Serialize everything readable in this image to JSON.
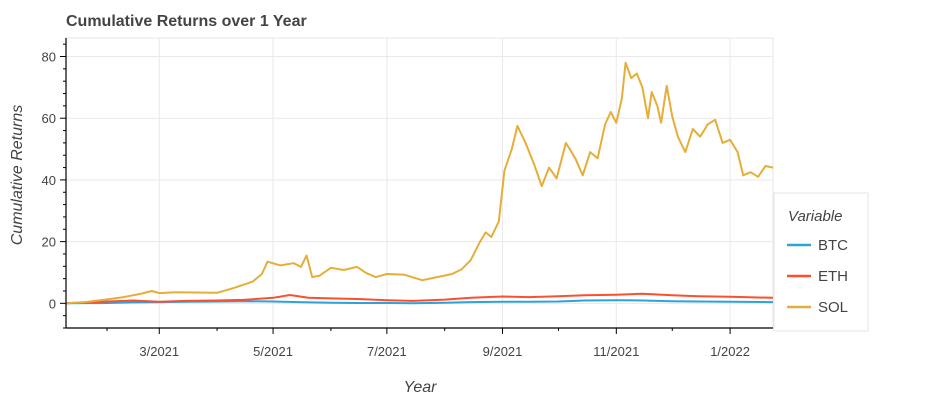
{
  "chart_data": {
    "type": "line",
    "title": "Cumulative Returns over 1 Year",
    "xlabel": "Year",
    "ylabel": "Cumulative Returns",
    "x_range": [
      "2021-01-10",
      "2022-01-24"
    ],
    "ylim": [
      -8,
      86
    ],
    "x_ticks": [
      {
        "date": "2021-03-01",
        "label": "3/2021"
      },
      {
        "date": "2021-05-01",
        "label": "5/2021"
      },
      {
        "date": "2021-07-01",
        "label": "7/2021"
      },
      {
        "date": "2021-09-01",
        "label": "9/2021"
      },
      {
        "date": "2021-11-01",
        "label": "11/2021"
      },
      {
        "date": "2022-01-01",
        "label": "1/2022"
      }
    ],
    "y_ticks": [
      0,
      20,
      40,
      60,
      80
    ],
    "grid": true,
    "legend": {
      "title": "Variable",
      "placement": "right"
    },
    "series": [
      {
        "name": "BTC",
        "color": "#30a2da",
        "points": [
          [
            "2021-01-10",
            0.0
          ],
          [
            "2021-02-01",
            0.1
          ],
          [
            "2021-02-15",
            0.3
          ],
          [
            "2021-03-01",
            0.4
          ],
          [
            "2021-03-15",
            0.5
          ],
          [
            "2021-04-01",
            0.6
          ],
          [
            "2021-04-15",
            0.7
          ],
          [
            "2021-05-01",
            0.6
          ],
          [
            "2021-05-15",
            0.4
          ],
          [
            "2021-06-01",
            0.2
          ],
          [
            "2021-06-15",
            0.1
          ],
          [
            "2021-07-01",
            0.1
          ],
          [
            "2021-07-15",
            0.0
          ],
          [
            "2021-08-01",
            0.2
          ],
          [
            "2021-08-15",
            0.4
          ],
          [
            "2021-09-01",
            0.5
          ],
          [
            "2021-09-15",
            0.5
          ],
          [
            "2021-10-01",
            0.6
          ],
          [
            "2021-10-15",
            0.9
          ],
          [
            "2021-11-01",
            1.0
          ],
          [
            "2021-11-15",
            0.9
          ],
          [
            "2021-12-01",
            0.7
          ],
          [
            "2021-12-15",
            0.6
          ],
          [
            "2022-01-01",
            0.5
          ],
          [
            "2022-01-24",
            0.4
          ]
        ]
      },
      {
        "name": "ETH",
        "color": "#fc4f30",
        "points": [
          [
            "2021-01-10",
            0.0
          ],
          [
            "2021-02-01",
            0.6
          ],
          [
            "2021-02-15",
            0.9
          ],
          [
            "2021-03-01",
            0.5
          ],
          [
            "2021-03-15",
            0.8
          ],
          [
            "2021-04-01",
            0.9
          ],
          [
            "2021-04-15",
            1.1
          ],
          [
            "2021-05-01",
            1.8
          ],
          [
            "2021-05-10",
            2.7
          ],
          [
            "2021-05-20",
            1.8
          ],
          [
            "2021-06-01",
            1.6
          ],
          [
            "2021-06-15",
            1.4
          ],
          [
            "2021-07-01",
            1.0
          ],
          [
            "2021-07-15",
            0.8
          ],
          [
            "2021-08-01",
            1.2
          ],
          [
            "2021-08-15",
            1.8
          ],
          [
            "2021-09-01",
            2.2
          ],
          [
            "2021-09-15",
            2.0
          ],
          [
            "2021-10-01",
            2.3
          ],
          [
            "2021-10-15",
            2.6
          ],
          [
            "2021-11-01",
            2.8
          ],
          [
            "2021-11-15",
            3.1
          ],
          [
            "2021-12-01",
            2.6
          ],
          [
            "2021-12-15",
            2.3
          ],
          [
            "2022-01-01",
            2.1
          ],
          [
            "2022-01-24",
            1.8
          ]
        ]
      },
      {
        "name": "SOL",
        "color": "#e5ae38",
        "points": [
          [
            "2021-01-10",
            0.0
          ],
          [
            "2021-01-20",
            0.4
          ],
          [
            "2021-01-31",
            1.2
          ],
          [
            "2021-02-10",
            2.0
          ],
          [
            "2021-02-20",
            3.2
          ],
          [
            "2021-02-25",
            4.0
          ],
          [
            "2021-03-01",
            3.3
          ],
          [
            "2021-03-10",
            3.6
          ],
          [
            "2021-03-20",
            3.5
          ],
          [
            "2021-04-01",
            3.4
          ],
          [
            "2021-04-10",
            5.0
          ],
          [
            "2021-04-20",
            7.0
          ],
          [
            "2021-04-25",
            9.5
          ],
          [
            "2021-04-28",
            13.5
          ],
          [
            "2021-05-05",
            12.3
          ],
          [
            "2021-05-12",
            13.0
          ],
          [
            "2021-05-16",
            11.8
          ],
          [
            "2021-05-19",
            15.5
          ],
          [
            "2021-05-22",
            8.5
          ],
          [
            "2021-05-26",
            9.0
          ],
          [
            "2021-06-01",
            11.5
          ],
          [
            "2021-06-08",
            10.8
          ],
          [
            "2021-06-15",
            11.8
          ],
          [
            "2021-06-20",
            9.8
          ],
          [
            "2021-06-25",
            8.5
          ],
          [
            "2021-07-01",
            9.5
          ],
          [
            "2021-07-10",
            9.3
          ],
          [
            "2021-07-20",
            7.5
          ],
          [
            "2021-07-28",
            8.5
          ],
          [
            "2021-08-05",
            9.5
          ],
          [
            "2021-08-10",
            11.0
          ],
          [
            "2021-08-15",
            14.0
          ],
          [
            "2021-08-20",
            20.0
          ],
          [
            "2021-08-23",
            23.0
          ],
          [
            "2021-08-26",
            21.5
          ],
          [
            "2021-08-30",
            26.5
          ],
          [
            "2021-09-02",
            43.0
          ],
          [
            "2021-09-06",
            50.0
          ],
          [
            "2021-09-09",
            57.5
          ],
          [
            "2021-09-13",
            52.5
          ],
          [
            "2021-09-18",
            45.0
          ],
          [
            "2021-09-22",
            38.0
          ],
          [
            "2021-09-26",
            44.0
          ],
          [
            "2021-09-30",
            40.5
          ],
          [
            "2021-10-05",
            52.0
          ],
          [
            "2021-10-10",
            47.0
          ],
          [
            "2021-10-14",
            41.5
          ],
          [
            "2021-10-18",
            49.0
          ],
          [
            "2021-10-22",
            47.0
          ],
          [
            "2021-10-26",
            58.0
          ],
          [
            "2021-10-29",
            62.0
          ],
          [
            "2021-11-01",
            58.5
          ],
          [
            "2021-11-04",
            66.5
          ],
          [
            "2021-11-06",
            78.0
          ],
          [
            "2021-11-09",
            73.0
          ],
          [
            "2021-11-12",
            74.5
          ],
          [
            "2021-11-15",
            70.0
          ],
          [
            "2021-11-18",
            60.0
          ],
          [
            "2021-11-20",
            68.5
          ],
          [
            "2021-11-23",
            64.0
          ],
          [
            "2021-11-25",
            58.5
          ],
          [
            "2021-11-28",
            70.5
          ],
          [
            "2021-12-01",
            60.5
          ],
          [
            "2021-12-04",
            54.0
          ],
          [
            "2021-12-08",
            49.0
          ],
          [
            "2021-12-12",
            56.5
          ],
          [
            "2021-12-16",
            54.0
          ],
          [
            "2021-12-20",
            58.0
          ],
          [
            "2021-12-24",
            59.5
          ],
          [
            "2021-12-28",
            52.0
          ],
          [
            "2022-01-01",
            53.0
          ],
          [
            "2022-01-05",
            49.0
          ],
          [
            "2022-01-08",
            41.5
          ],
          [
            "2022-01-12",
            42.5
          ],
          [
            "2022-01-16",
            41.0
          ],
          [
            "2022-01-20",
            44.5
          ],
          [
            "2022-01-24",
            44.0
          ]
        ]
      }
    ]
  }
}
